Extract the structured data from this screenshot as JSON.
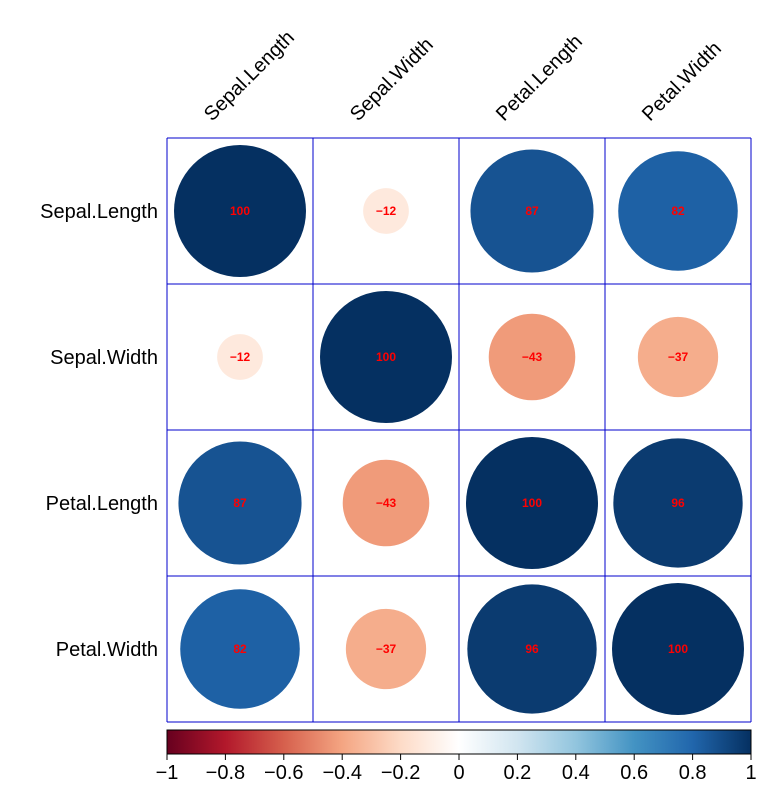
{
  "chart_data": {
    "type": "heatmap",
    "style": "correlation-matrix-circles",
    "labels": [
      "Sepal.Length",
      "Sepal.Width",
      "Petal.Length",
      "Petal.Width"
    ],
    "values": [
      [
        100,
        -12,
        87,
        82
      ],
      [
        -12,
        100,
        -43,
        -37
      ],
      [
        87,
        -43,
        100,
        96
      ],
      [
        82,
        -37,
        96,
        100
      ]
    ],
    "value_text_color": "#ff0000",
    "grid_color": "#0000cc",
    "colorbar": {
      "range": [
        -1,
        1
      ],
      "ticks": [
        "−1",
        "−0.8",
        "−0.6",
        "−0.4",
        "−0.2",
        "0",
        "0.2",
        "0.4",
        "0.6",
        "0.8",
        "1"
      ],
      "colors": [
        "#67001f",
        "#b2182b",
        "#d6604d",
        "#f4a582",
        "#fddbc7",
        "#ffffff",
        "#d1e5f0",
        "#92c5de",
        "#4393c3",
        "#2166ac",
        "#053061"
      ]
    }
  }
}
